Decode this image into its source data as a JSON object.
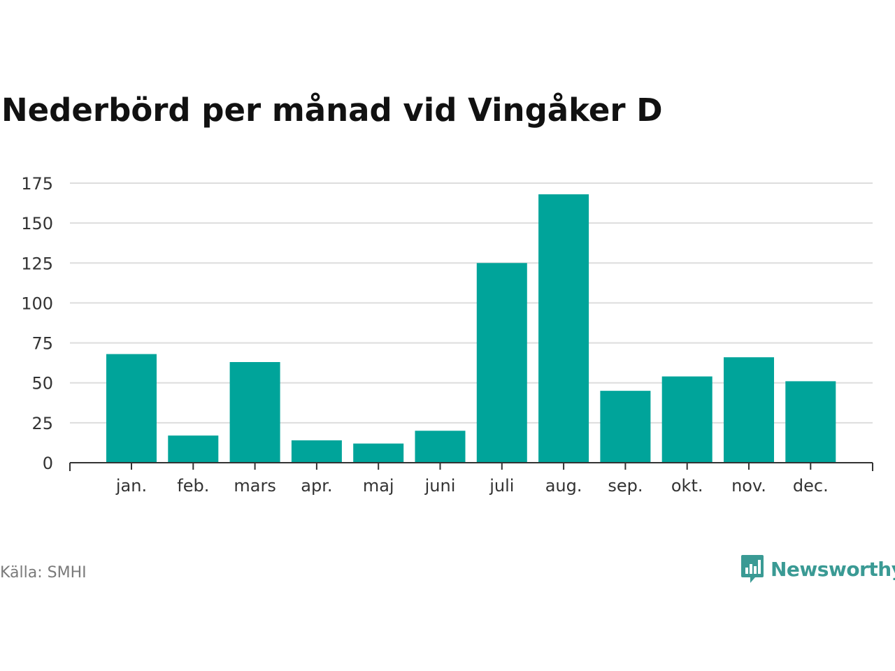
{
  "chart_data": {
    "type": "bar",
    "title": "Nederbörd per månad vid Vingåker D",
    "categories": [
      "jan.",
      "feb.",
      "mars",
      "apr.",
      "maj",
      "juni",
      "juli",
      "aug.",
      "sep.",
      "okt.",
      "nov.",
      "dec."
    ],
    "values": [
      68,
      17,
      63,
      14,
      12,
      20,
      125,
      168,
      45,
      54,
      66,
      51
    ],
    "ylim": [
      0,
      175
    ],
    "yticks": [
      0,
      25,
      50,
      75,
      100,
      125,
      150,
      175
    ],
    "grid": true,
    "bar_color": "#00a49a",
    "xlabel": "",
    "ylabel": ""
  },
  "footer": {
    "source": "Källa: SMHI",
    "brand": "Newsworthy",
    "brand_icon": "chart-bubble-icon",
    "brand_color": "#3a9a94"
  }
}
